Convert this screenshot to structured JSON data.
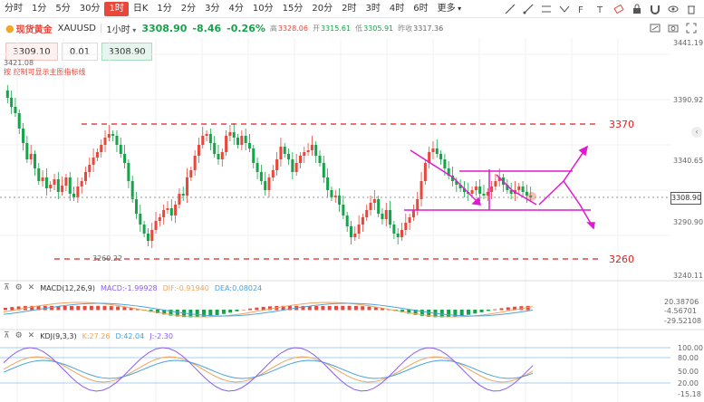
{
  "toolbar": {
    "timeframes": [
      "分时",
      "1分",
      "5分",
      "30分",
      "1时",
      "日K",
      "1分",
      "2分",
      "3分",
      "4分",
      "10分",
      "15分",
      "20分",
      "2时",
      "3时",
      "4时",
      "6时",
      "更多"
    ],
    "active_index": 4
  },
  "symbol": {
    "name": "现货黄金",
    "code": "XAUUSD",
    "period": "1小时",
    "last": "3308.90",
    "change": "-8.46",
    "change_pct": "-0.26%",
    "high_label": "高",
    "high": "3328.06",
    "open_label": "开",
    "open": "3315.61",
    "low_label": "低",
    "low": "3305.91",
    "prev_label": "昨收",
    "prev": "3317.36"
  },
  "order": {
    "sell": "3309.10",
    "qty": "0.01",
    "buy": "3308.90"
  },
  "chart_note": "按 控制可显示主图指标线",
  "price_axis": {
    "ticks": [
      "3441.19",
      "3390.92",
      "3340.65",
      "3290.90",
      "3240.11"
    ],
    "current": "3308.90",
    "top_label": "3421.08",
    "low_label": "3260.22"
  },
  "levels": {
    "resistance": "3370",
    "support": "3260"
  },
  "macd": {
    "name": "MACD(12,26,9)",
    "macd_label": "MACD:",
    "macd": "-1.99928",
    "dif_label": "DIF:",
    "dif": "-0.91940",
    "dea_label": "DEA:",
    "dea": "0.08024",
    "axis": [
      "20.38706",
      "-4.56701",
      "-29.52108"
    ]
  },
  "kdj": {
    "name": "KDJ(9,3,3)",
    "k_label": "K:",
    "k": "27.26",
    "d_label": "D:",
    "d": "42.04",
    "j_label": "J:",
    "j": "-2.30",
    "axis": [
      "100.00",
      "80.00",
      "50.00",
      "20.00",
      "-15.18"
    ]
  },
  "colors": {
    "up": "#e8473c",
    "down": "#16a34a",
    "annot": "#e01ad0",
    "level": "#e02020"
  }
}
